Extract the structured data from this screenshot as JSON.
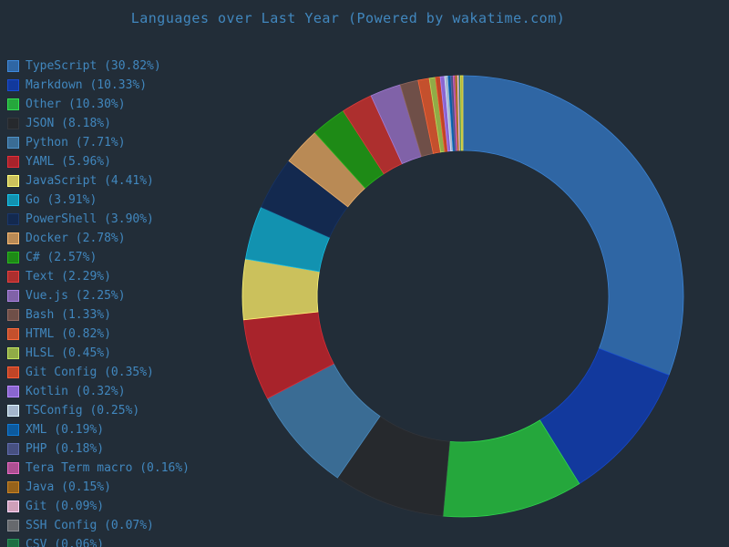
{
  "page": {
    "background": "#222d38",
    "text_color": "#4187be"
  },
  "chart_data": {
    "type": "pie",
    "variant": "donut",
    "title": "Languages over Last Year (Powered by wakatime.com)",
    "unit": "%",
    "legend_position": "left",
    "start_angle": "top",
    "direction": "clockwise",
    "slices": [
      {
        "label": "TypeScript",
        "value": 30.82,
        "display": "TypeScript (30.82%)",
        "color": "#2f66a4"
      },
      {
        "label": "Markdown",
        "value": 10.33,
        "display": "Markdown (10.33%)",
        "color": "#12399d"
      },
      {
        "label": "Other",
        "value": 10.3,
        "display": "Other (10.30%)",
        "color": "#25a73c"
      },
      {
        "label": "JSON",
        "value": 8.18,
        "display": "JSON (8.18%)",
        "color": "#26292d"
      },
      {
        "label": "Python",
        "value": 7.71,
        "display": "Python (7.71%)",
        "color": "#3a6c94"
      },
      {
        "label": "YAML",
        "value": 5.96,
        "display": "YAML (5.96%)",
        "color": "#a8232b"
      },
      {
        "label": "JavaScript",
        "value": 4.41,
        "display": "JavaScript (4.41%)",
        "color": "#cbc15c"
      },
      {
        "label": "Go",
        "value": 3.91,
        "display": "Go (3.91%)",
        "color": "#1292b0"
      },
      {
        "label": "PowerShell",
        "value": 3.9,
        "display": "PowerShell (3.90%)",
        "color": "#13294f"
      },
      {
        "label": "Docker",
        "value": 2.78,
        "display": "Docker (2.78%)",
        "color": "#b98a55"
      },
      {
        "label": "C#",
        "value": 2.57,
        "display": "C# (2.57%)",
        "color": "#1e8a16"
      },
      {
        "label": "Text",
        "value": 2.29,
        "display": "Text (2.29%)",
        "color": "#ad2f2e"
      },
      {
        "label": "Vue.js",
        "value": 2.25,
        "display": "Vue.js (2.25%)",
        "color": "#8062a8"
      },
      {
        "label": "Bash",
        "value": 1.33,
        "display": "Bash (1.33%)",
        "color": "#6f4f48"
      },
      {
        "label": "HTML",
        "value": 0.82,
        "display": "HTML (0.82%)",
        "color": "#c4502d"
      },
      {
        "label": "HLSL",
        "value": 0.45,
        "display": "HLSL (0.45%)",
        "color": "#91ab47"
      },
      {
        "label": "Git Config",
        "value": 0.35,
        "display": "Git Config (0.35%)",
        "color": "#c04527"
      },
      {
        "label": "Kotlin",
        "value": 0.32,
        "display": "Kotlin (0.32%)",
        "color": "#8a66d0"
      },
      {
        "label": "TSConfig",
        "value": 0.25,
        "display": "TSConfig (0.25%)",
        "color": "#a4b6cc"
      },
      {
        "label": "XML",
        "value": 0.19,
        "display": "XML (0.19%)",
        "color": "#0c5a9e"
      },
      {
        "label": "PHP",
        "value": 0.18,
        "display": "PHP (0.18%)",
        "color": "#475081"
      },
      {
        "label": "Tera Term macro",
        "value": 0.16,
        "display": "Tera Term macro (0.16%)",
        "color": "#ad4f92"
      },
      {
        "label": "Java",
        "value": 0.15,
        "display": "Java (0.15%)",
        "color": "#96621a"
      },
      {
        "label": "Git",
        "value": 0.09,
        "display": "Git (0.09%)",
        "color": "#cfa0ba"
      },
      {
        "label": "SSH Config",
        "value": 0.07,
        "display": "SSH Config (0.07%)",
        "color": "#66696d"
      },
      {
        "label": "CSV",
        "value": 0.06,
        "display": "CSV (0.06%)",
        "color": "#1d6f42"
      },
      {
        "label": "",
        "value": 0.17,
        "display": "",
        "color": "#b7b43e",
        "legend": false
      }
    ]
  }
}
